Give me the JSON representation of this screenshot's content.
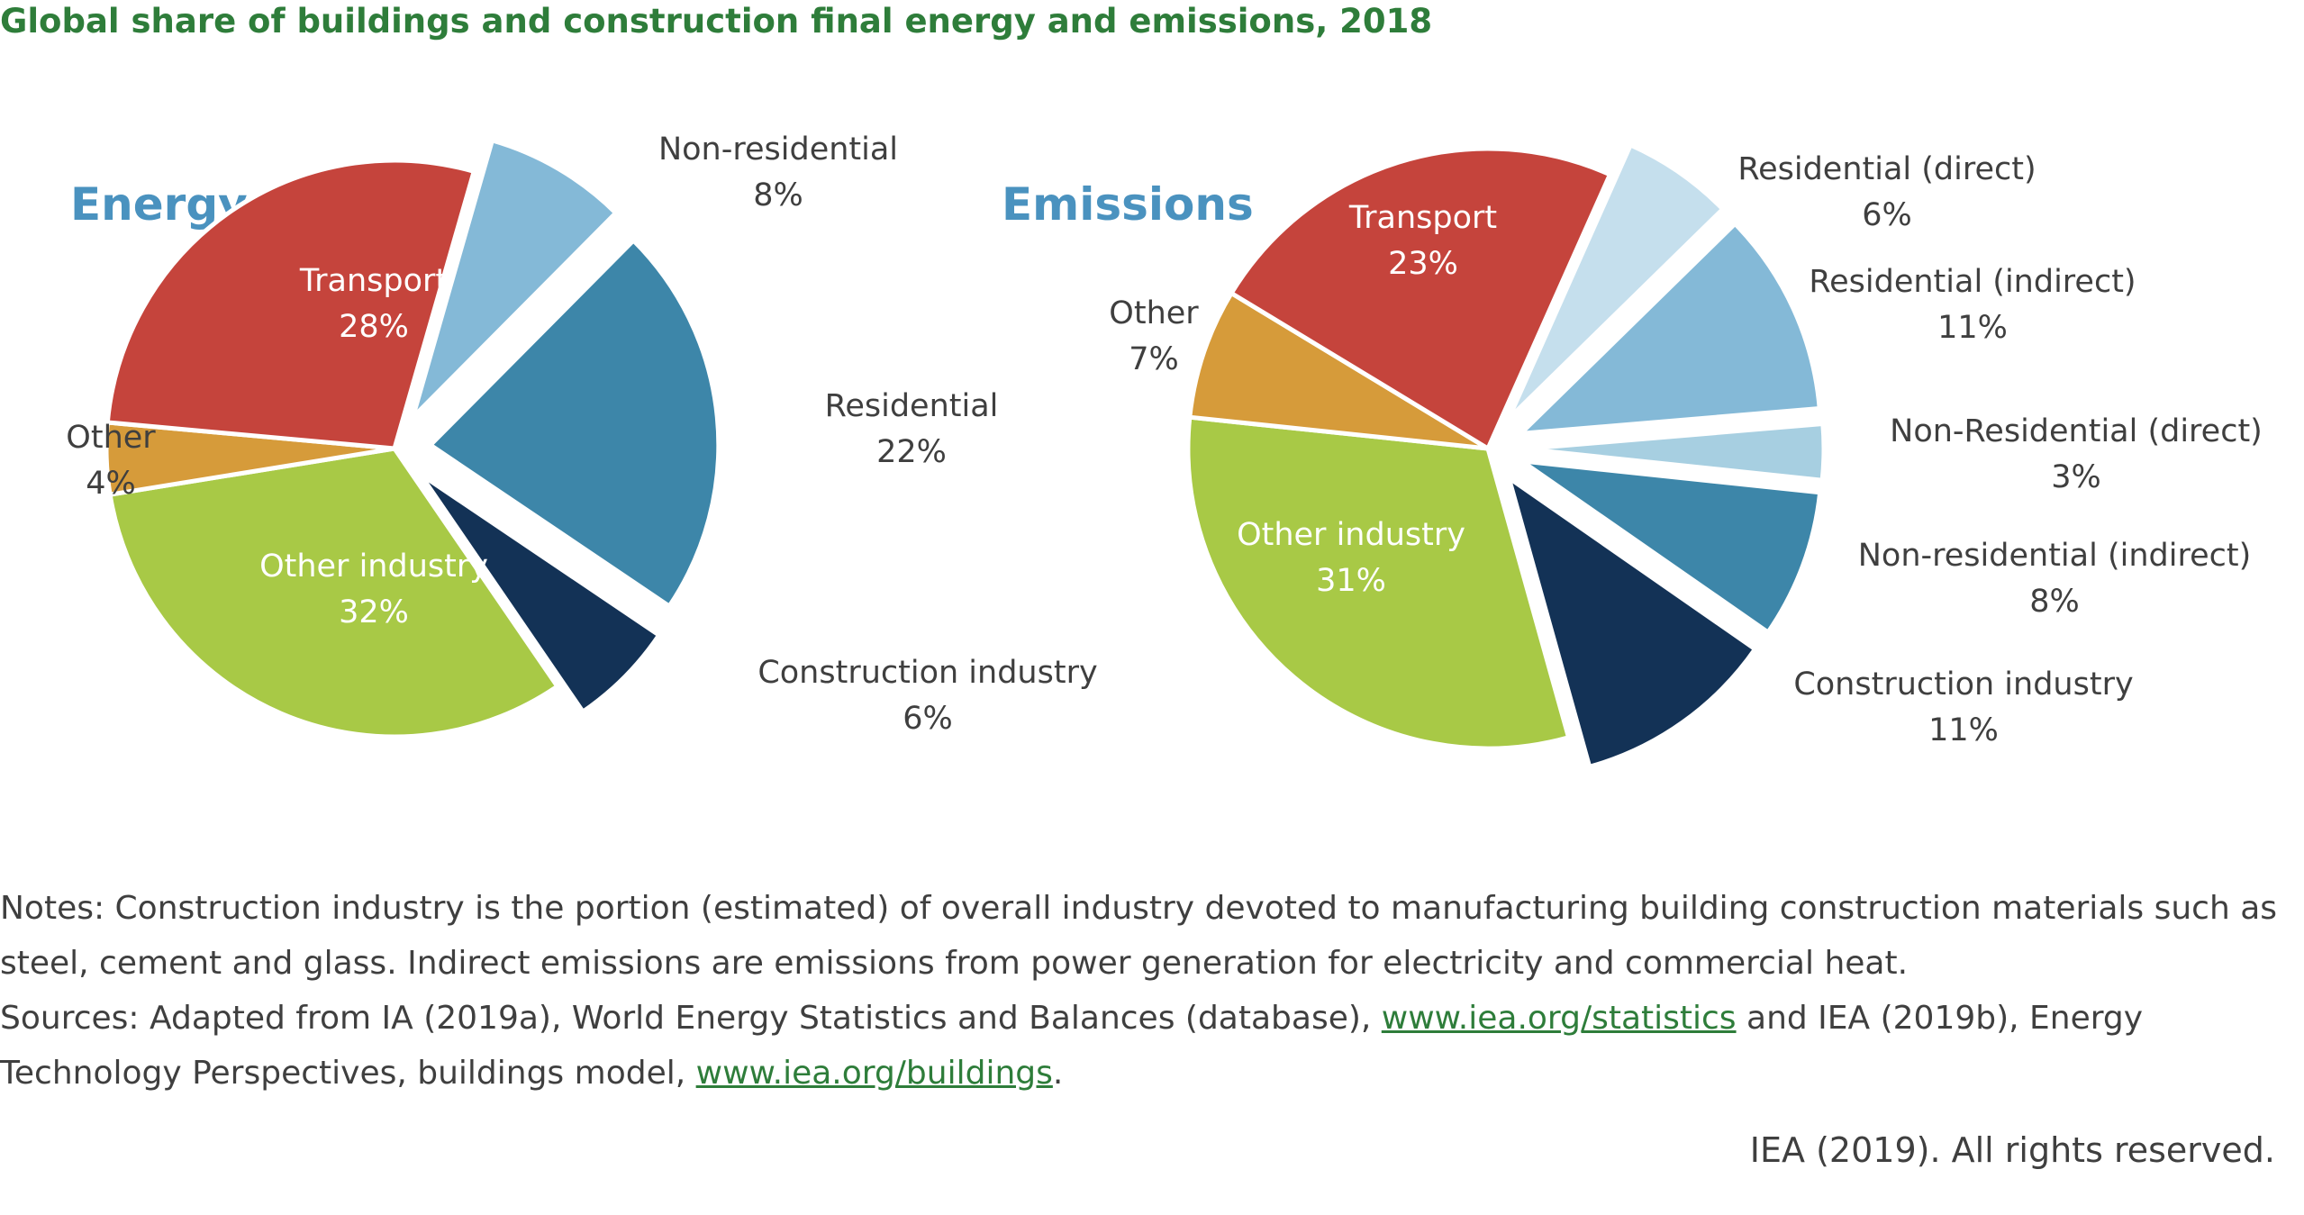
{
  "title": "Global share of buildings and construction final energy and emissions, 2018",
  "chart_data": [
    {
      "type": "pie",
      "title": "Energy",
      "unit": "%",
      "slices": [
        {
          "name": "Non-residential",
          "value": 8,
          "color": "#84b9d7",
          "exploded": true
        },
        {
          "name": "Residential",
          "value": 22,
          "color": "#3d86a9",
          "exploded": true
        },
        {
          "name": "Construction industry",
          "value": 6,
          "color": "#133256",
          "exploded": true
        },
        {
          "name": "Other industry",
          "value": 32,
          "color": "#a8c946",
          "exploded": false
        },
        {
          "name": "Other",
          "value": 4,
          "color": "#d69b3a",
          "exploded": false
        },
        {
          "name": "Transport",
          "value": 28,
          "color": "#c5443c",
          "exploded": false
        }
      ]
    },
    {
      "type": "pie",
      "title": "Emissions",
      "unit": "%",
      "slices": [
        {
          "name": "Residential (direct)",
          "value": 6,
          "color": "#c5dfed",
          "exploded": true
        },
        {
          "name": "Residential (indirect)",
          "value": 11,
          "color": "#84b9d7",
          "exploded": true
        },
        {
          "name": "Non-Residential (direct)",
          "value": 3,
          "color": "#a7cfe1",
          "exploded": true
        },
        {
          "name": "Non-residential (indirect)",
          "value": 8,
          "color": "#3d86a9",
          "exploded": true
        },
        {
          "name": "Construction industry",
          "value": 11,
          "color": "#133256",
          "exploded": true
        },
        {
          "name": "Other industry",
          "value": 31,
          "color": "#a8c946",
          "exploded": false
        },
        {
          "name": "Other",
          "value": 7,
          "color": "#d69b3a",
          "exploded": false
        },
        {
          "name": "Transport",
          "value": 23,
          "color": "#c5443c",
          "exploded": false
        }
      ]
    }
  ],
  "notes": {
    "line1": "Notes: Construction industry is the portion (estimated) of overall industry devoted to manufacturing building construction materials such as steel, cement and glass. Indirect emissions are emissions from power generation for electricity and commercial heat.",
    "sources_prefix": "Sources: Adapted from IA (2019a), World Energy Statistics and Balances (database), ",
    "link1": "www.iea.org/statistics",
    "sources_middle": " and IEA (2019b), Energy Technology Perspectives, buildings model, ",
    "link2": "www.iea.org/buildings",
    "sources_suffix": "."
  },
  "copyright": "IEA (2019). All rights reserved."
}
